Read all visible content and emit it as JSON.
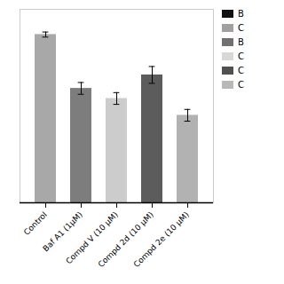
{
  "chart_data": {
    "type": "bar",
    "categories": [
      "Control",
      "Baf A1 (1μM)",
      "Compd V (10 μM)",
      "Compd 2d (10 μM)",
      "Compd 2e (10 μM)"
    ],
    "values": [
      100,
      68,
      62,
      76,
      52
    ],
    "errors": [
      1.5,
      3.5,
      3.5,
      5,
      3.5
    ],
    "colors": [
      "#a8a8a8",
      "#7d7d7d",
      "#cccccc",
      "#5c5c5c",
      "#b2b2b2"
    ],
    "ylim": [
      0,
      115
    ],
    "tick_labels": "x",
    "grid": false,
    "legend": "upper right",
    "legend_labels": [
      "B",
      "C",
      "B",
      "C",
      "C",
      "C"
    ],
    "legend_colors": [
      "#111111",
      "#a0a0a0",
      "#707070",
      "#d8d8d8",
      "#505050",
      "#b8b8b8"
    ]
  }
}
